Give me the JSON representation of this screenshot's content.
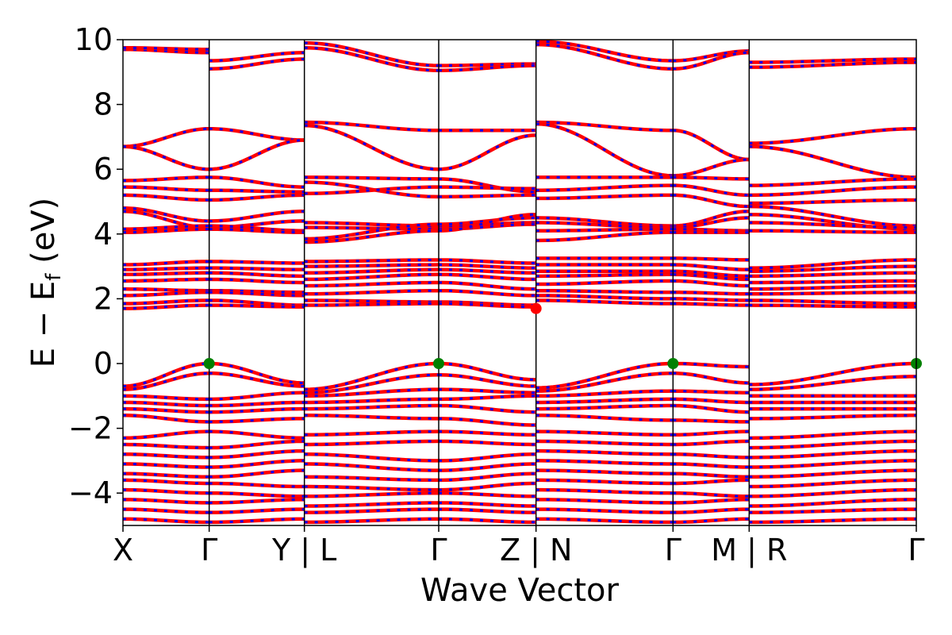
{
  "chart_data": {
    "type": "line",
    "title": "",
    "xlabel": "Wave Vector",
    "ylabel": "E − E_f (eV)",
    "ylabel_parts": {
      "main": "E − E",
      "sub": "f",
      "unit": " (eV)"
    },
    "ylim": [
      -5,
      10
    ],
    "yticks": [
      {
        "value": 10,
        "label": "10"
      },
      {
        "value": 8,
        "label": "8"
      },
      {
        "value": 6,
        "label": "6"
      },
      {
        "value": 4,
        "label": "4"
      },
      {
        "value": 2,
        "label": "2"
      },
      {
        "value": 0,
        "label": "0"
      },
      {
        "value": -2,
        "label": "−2"
      },
      {
        "value": -4,
        "label": "−4"
      }
    ],
    "k_path_labels": [
      "X",
      "Γ",
      "Y | L",
      "Γ",
      "Z | N",
      "Γ",
      "M | R",
      "Γ"
    ],
    "k_path_positions": [
      0,
      0.163,
      0.343,
      0.597,
      0.781,
      1.04,
      1.184,
      1.5
    ],
    "band_colors": {
      "spin_up": "#ff0000",
      "spin_down": "#0000ff"
    },
    "vbm_color": "#008000",
    "cbm_color": "#ff0000",
    "vbm_points": [
      {
        "k": 0.163,
        "E": 0.0
      },
      {
        "k": 0.597,
        "E": 0.0
      },
      {
        "k": 1.04,
        "E": 0.0
      },
      {
        "k": 1.5,
        "E": 0.0
      }
    ],
    "cbm_points": [
      {
        "k": 0.781,
        "E": 1.7
      }
    ],
    "segments": [
      {
        "k_start": 0,
        "k_end": 0.163,
        "bands": [
          [
            9.7,
            9.6
          ],
          [
            9.75,
            9.7
          ],
          [
            6.7,
            7.25
          ],
          [
            6.7,
            6.0
          ],
          [
            5.65,
            5.75
          ],
          [
            5.45,
            5.35
          ],
          [
            5.2,
            5.05
          ],
          [
            4.8,
            4.4
          ],
          [
            4.7,
            4.2
          ],
          [
            4.15,
            4.25
          ],
          [
            4.05,
            4.15
          ],
          [
            3.05,
            3.15
          ],
          [
            2.9,
            2.95
          ],
          [
            2.75,
            2.8
          ],
          [
            2.55,
            2.6
          ],
          [
            2.3,
            2.25
          ],
          [
            2.1,
            2.2
          ],
          [
            1.85,
            1.95
          ],
          [
            1.7,
            1.8
          ],
          [
            -0.7,
            0.0
          ],
          [
            -0.8,
            -0.3
          ],
          [
            -1.0,
            -1.1
          ],
          [
            -1.2,
            -1.3
          ],
          [
            -1.4,
            -1.5
          ],
          [
            -1.6,
            -1.8
          ],
          [
            -2.3,
            -2.1
          ],
          [
            -2.5,
            -2.6
          ],
          [
            -2.8,
            -2.9
          ],
          [
            -3.1,
            -3.2
          ],
          [
            -3.4,
            -3.5
          ],
          [
            -3.6,
            -3.7
          ],
          [
            -3.9,
            -4.0
          ],
          [
            -4.2,
            -4.3
          ],
          [
            -4.5,
            -4.6
          ],
          [
            -4.8,
            -4.9
          ]
        ]
      },
      {
        "k_start": 0.163,
        "k_end": 0.343,
        "bands": [
          [
            9.35,
            9.6
          ],
          [
            9.1,
            9.4
          ],
          [
            7.25,
            6.9
          ],
          [
            6.0,
            6.9
          ],
          [
            5.75,
            5.45
          ],
          [
            5.35,
            5.3
          ],
          [
            5.05,
            5.2
          ],
          [
            4.4,
            4.7
          ],
          [
            4.2,
            4.4
          ],
          [
            4.25,
            4.1
          ],
          [
            4.15,
            4.05
          ],
          [
            3.15,
            3.1
          ],
          [
            2.95,
            2.9
          ],
          [
            2.8,
            2.7
          ],
          [
            2.6,
            2.5
          ],
          [
            2.25,
            2.2
          ],
          [
            2.2,
            2.1
          ],
          [
            1.95,
            1.8
          ],
          [
            1.8,
            1.75
          ],
          [
            0.0,
            -0.6
          ],
          [
            -0.3,
            -0.7
          ],
          [
            -1.1,
            -0.9
          ],
          [
            -1.3,
            -1.2
          ],
          [
            -1.5,
            -1.4
          ],
          [
            -1.8,
            -1.7
          ],
          [
            -2.1,
            -2.3
          ],
          [
            -2.6,
            -2.4
          ],
          [
            -2.9,
            -2.7
          ],
          [
            -3.2,
            -3.0
          ],
          [
            -3.5,
            -3.3
          ],
          [
            -3.7,
            -3.8
          ],
          [
            -4.0,
            -4.1
          ],
          [
            -4.3,
            -4.2
          ],
          [
            -4.6,
            -4.5
          ],
          [
            -4.9,
            -4.8
          ]
        ]
      },
      {
        "k_start": 0.343,
        "k_end": 0.597,
        "bands": [
          [
            9.9,
            9.2
          ],
          [
            9.75,
            9.05
          ],
          [
            7.45,
            7.2
          ],
          [
            7.35,
            6.0
          ],
          [
            5.75,
            5.7
          ],
          [
            5.6,
            5.15
          ],
          [
            5.25,
            5.45
          ],
          [
            4.35,
            4.25
          ],
          [
            4.2,
            4.15
          ],
          [
            3.85,
            4.3
          ],
          [
            3.75,
            4.1
          ],
          [
            3.15,
            3.2
          ],
          [
            3.0,
            3.05
          ],
          [
            2.8,
            2.9
          ],
          [
            2.6,
            2.75
          ],
          [
            2.4,
            2.5
          ],
          [
            2.15,
            2.25
          ],
          [
            1.95,
            1.9
          ],
          [
            1.8,
            1.85
          ],
          [
            -0.8,
            0.0
          ],
          [
            -0.9,
            -0.35
          ],
          [
            -1.0,
            -0.8
          ],
          [
            -1.2,
            -1.1
          ],
          [
            -1.4,
            -1.3
          ],
          [
            -1.6,
            -1.7
          ],
          [
            -2.2,
            -2.1
          ],
          [
            -2.5,
            -2.4
          ],
          [
            -2.8,
            -3.0
          ],
          [
            -3.1,
            -3.3
          ],
          [
            -3.5,
            -3.6
          ],
          [
            -3.8,
            -3.9
          ],
          [
            -4.1,
            -4.0
          ],
          [
            -4.4,
            -4.3
          ],
          [
            -4.6,
            -4.5
          ],
          [
            -4.9,
            -4.8
          ]
        ]
      },
      {
        "k_start": 0.597,
        "k_end": 0.781,
        "bands": [
          [
            9.2,
            9.25
          ],
          [
            9.05,
            9.2
          ],
          [
            7.2,
            7.2
          ],
          [
            6.0,
            7.05
          ],
          [
            5.7,
            5.3
          ],
          [
            5.15,
            5.2
          ],
          [
            5.45,
            5.4
          ],
          [
            4.25,
            4.35
          ],
          [
            4.15,
            4.3
          ],
          [
            4.3,
            4.5
          ],
          [
            4.1,
            4.6
          ],
          [
            3.2,
            3.1
          ],
          [
            3.05,
            2.95
          ],
          [
            2.9,
            2.8
          ],
          [
            2.75,
            2.6
          ],
          [
            2.5,
            2.3
          ],
          [
            2.25,
            2.1
          ],
          [
            1.9,
            1.8
          ],
          [
            1.85,
            1.75
          ],
          [
            0.0,
            -0.5
          ],
          [
            -0.35,
            -0.7
          ],
          [
            -0.8,
            -0.9
          ],
          [
            -1.1,
            -1.0
          ],
          [
            -1.3,
            -1.5
          ],
          [
            -1.7,
            -1.9
          ],
          [
            -2.1,
            -2.2
          ],
          [
            -2.4,
            -2.5
          ],
          [
            -3.0,
            -2.8
          ],
          [
            -3.3,
            -3.1
          ],
          [
            -3.6,
            -3.4
          ],
          [
            -3.9,
            -3.7
          ],
          [
            -4.0,
            -4.1
          ],
          [
            -4.3,
            -4.4
          ],
          [
            -4.5,
            -4.6
          ],
          [
            -4.8,
            -4.9
          ]
        ]
      },
      {
        "k_start": 0.781,
        "k_end": 1.04,
        "bands": [
          [
            9.95,
            9.35
          ],
          [
            9.85,
            9.1
          ],
          [
            7.45,
            7.2
          ],
          [
            7.4,
            5.8
          ],
          [
            5.75,
            5.75
          ],
          [
            5.35,
            5.5
          ],
          [
            5.1,
            5.2
          ],
          [
            4.5,
            4.25
          ],
          [
            4.35,
            4.2
          ],
          [
            4.1,
            4.15
          ],
          [
            3.8,
            4.05
          ],
          [
            3.25,
            3.25
          ],
          [
            3.05,
            3.05
          ],
          [
            2.85,
            2.85
          ],
          [
            2.7,
            2.75
          ],
          [
            2.45,
            2.55
          ],
          [
            2.25,
            2.2
          ],
          [
            2.1,
            2.0
          ],
          [
            1.95,
            1.85
          ],
          [
            -0.75,
            0.0
          ],
          [
            -0.85,
            -0.3
          ],
          [
            -1.0,
            -0.85
          ],
          [
            -1.2,
            -1.1
          ],
          [
            -1.4,
            -1.3
          ],
          [
            -1.6,
            -1.75
          ],
          [
            -2.1,
            -2.2
          ],
          [
            -2.4,
            -2.5
          ],
          [
            -2.7,
            -2.8
          ],
          [
            -3.0,
            -3.1
          ],
          [
            -3.3,
            -3.4
          ],
          [
            -3.6,
            -3.7
          ],
          [
            -3.9,
            -4.0
          ],
          [
            -4.2,
            -4.3
          ],
          [
            -4.5,
            -4.6
          ],
          [
            -4.8,
            -4.9
          ]
        ]
      },
      {
        "k_start": 1.04,
        "k_end": 1.184,
        "bands": [
          [
            9.35,
            9.65
          ],
          [
            9.1,
            9.6
          ],
          [
            7.2,
            6.3
          ],
          [
            5.8,
            6.3
          ],
          [
            5.75,
            5.7
          ],
          [
            5.5,
            5.2
          ],
          [
            5.2,
            4.85
          ],
          [
            4.25,
            4.7
          ],
          [
            4.2,
            4.5
          ],
          [
            4.15,
            4.1
          ],
          [
            4.05,
            4.05
          ],
          [
            3.25,
            3.2
          ],
          [
            3.05,
            2.9
          ],
          [
            2.85,
            2.7
          ],
          [
            2.75,
            2.6
          ],
          [
            2.55,
            2.4
          ],
          [
            2.2,
            2.15
          ],
          [
            2.0,
            1.95
          ],
          [
            1.85,
            1.8
          ],
          [
            0.0,
            -0.1
          ],
          [
            -0.3,
            -0.6
          ],
          [
            -0.85,
            -0.9
          ],
          [
            -1.1,
            -1.2
          ],
          [
            -1.3,
            -1.5
          ],
          [
            -1.75,
            -1.8
          ],
          [
            -2.2,
            -2.1
          ],
          [
            -2.5,
            -2.4
          ],
          [
            -2.8,
            -2.9
          ],
          [
            -3.1,
            -3.2
          ],
          [
            -3.4,
            -3.5
          ],
          [
            -3.7,
            -3.6
          ],
          [
            -4.0,
            -4.1
          ],
          [
            -4.3,
            -4.2
          ],
          [
            -4.6,
            -4.5
          ],
          [
            -4.9,
            -4.8
          ]
        ]
      },
      {
        "k_start": 1.184,
        "k_end": 1.5,
        "bands": [
          [
            9.3,
            9.4
          ],
          [
            9.15,
            9.3
          ],
          [
            6.8,
            7.25
          ],
          [
            6.7,
            5.75
          ],
          [
            5.5,
            5.7
          ],
          [
            5.2,
            5.45
          ],
          [
            4.95,
            5.05
          ],
          [
            4.85,
            4.25
          ],
          [
            4.6,
            4.15
          ],
          [
            4.35,
            4.2
          ],
          [
            4.1,
            4.05
          ],
          [
            2.95,
            3.2
          ],
          [
            2.85,
            3.0
          ],
          [
            2.7,
            2.8
          ],
          [
            2.5,
            2.55
          ],
          [
            2.3,
            2.4
          ],
          [
            2.15,
            2.2
          ],
          [
            1.95,
            1.85
          ],
          [
            1.8,
            1.75
          ],
          [
            -0.65,
            0.0
          ],
          [
            -0.8,
            -0.4
          ],
          [
            -1.0,
            -1.0
          ],
          [
            -1.2,
            -1.2
          ],
          [
            -1.4,
            -1.4
          ],
          [
            -1.7,
            -1.6
          ],
          [
            -2.3,
            -2.1
          ],
          [
            -2.6,
            -2.4
          ],
          [
            -2.9,
            -2.7
          ],
          [
            -3.2,
            -3.0
          ],
          [
            -3.5,
            -3.3
          ],
          [
            -3.8,
            -3.6
          ],
          [
            -4.1,
            -3.9
          ],
          [
            -4.4,
            -4.2
          ],
          [
            -4.6,
            -4.5
          ],
          [
            -4.9,
            -4.8
          ]
        ]
      }
    ],
    "grid": false,
    "legend": "none"
  }
}
